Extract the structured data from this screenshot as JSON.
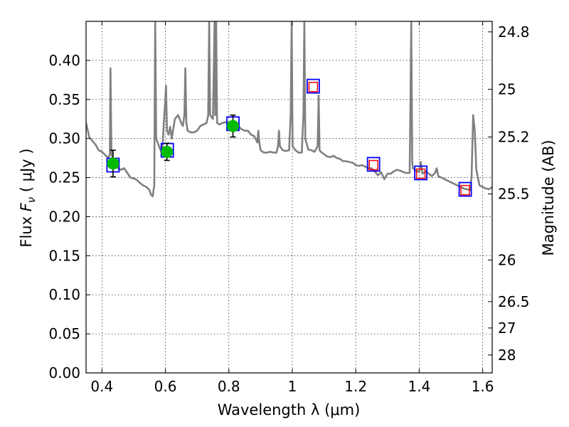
{
  "chart_data": {
    "type": "scatter",
    "title": "",
    "xlabel": "Wavelength  λ (μm)",
    "ylabel_left": "Flux  F_ν  ( μJy )",
    "ylabel_right": "Magnitude (AB)",
    "xlim": [
      0.35,
      1.63
    ],
    "ylim": [
      0.0,
      0.45
    ],
    "grid": true,
    "x_ticks": [
      {
        "value": 0.4,
        "label": "0.4"
      },
      {
        "value": 0.6,
        "label": "0.6"
      },
      {
        "value": 0.8,
        "label": "0.8"
      },
      {
        "value": 1.0,
        "label": "1"
      },
      {
        "value": 1.2,
        "label": "1.2"
      },
      {
        "value": 1.4,
        "label": "1.4"
      },
      {
        "value": 1.6,
        "label": "1.6"
      }
    ],
    "y_ticks": [
      {
        "value": 0.0,
        "label": "0.00"
      },
      {
        "value": 0.05,
        "label": "0.05"
      },
      {
        "value": 0.1,
        "label": "0.10"
      },
      {
        "value": 0.15,
        "label": "0.15"
      },
      {
        "value": 0.2,
        "label": "0.20"
      },
      {
        "value": 0.25,
        "label": "0.25"
      },
      {
        "value": 0.3,
        "label": "0.30"
      },
      {
        "value": 0.35,
        "label": "0.35"
      },
      {
        "value": 0.4,
        "label": "0.40"
      }
    ],
    "right_ticks": [
      {
        "flux": 0.4365,
        "label": "24.8"
      },
      {
        "flux": 0.3631,
        "label": "25"
      },
      {
        "flux": 0.302,
        "label": "25.2"
      },
      {
        "flux": 0.2291,
        "label": "25.5"
      },
      {
        "flux": 0.1445,
        "label": "26"
      },
      {
        "flux": 0.0912,
        "label": "26.5"
      },
      {
        "flux": 0.0575,
        "label": "27"
      },
      {
        "flux": 0.0229,
        "label": "28"
      }
    ],
    "series": [
      {
        "kind": "line",
        "color": "#808080",
        "points": [
          [
            0.35,
            0.32
          ],
          [
            0.36,
            0.302
          ],
          [
            0.37,
            0.297
          ],
          [
            0.38,
            0.292
          ],
          [
            0.39,
            0.285
          ],
          [
            0.4,
            0.283
          ],
          [
            0.41,
            0.279
          ],
          [
            0.42,
            0.275
          ],
          [
            0.425,
            0.28
          ],
          [
            0.427,
            0.39
          ],
          [
            0.43,
            0.28
          ],
          [
            0.44,
            0.268
          ],
          [
            0.45,
            0.262
          ],
          [
            0.46,
            0.26
          ],
          [
            0.47,
            0.262
          ],
          [
            0.48,
            0.256
          ],
          [
            0.49,
            0.25
          ],
          [
            0.5,
            0.249
          ],
          [
            0.51,
            0.247
          ],
          [
            0.52,
            0.243
          ],
          [
            0.53,
            0.24
          ],
          [
            0.54,
            0.238
          ],
          [
            0.55,
            0.234
          ],
          [
            0.555,
            0.228
          ],
          [
            0.56,
            0.226
          ],
          [
            0.565,
            0.24
          ],
          [
            0.568,
            0.45
          ],
          [
            0.571,
            0.3
          ],
          [
            0.58,
            0.29
          ],
          [
            0.59,
            0.28
          ],
          [
            0.595,
            0.32
          ],
          [
            0.6,
            0.35
          ],
          [
            0.602,
            0.368
          ],
          [
            0.605,
            0.31
          ],
          [
            0.61,
            0.305
          ],
          [
            0.615,
            0.315
          ],
          [
            0.62,
            0.3
          ],
          [
            0.63,
            0.325
          ],
          [
            0.64,
            0.33
          ],
          [
            0.645,
            0.325
          ],
          [
            0.65,
            0.32
          ],
          [
            0.655,
            0.316
          ],
          [
            0.66,
            0.33
          ],
          [
            0.663,
            0.39
          ],
          [
            0.666,
            0.32
          ],
          [
            0.67,
            0.31
          ],
          [
            0.68,
            0.308
          ],
          [
            0.69,
            0.308
          ],
          [
            0.7,
            0.31
          ],
          [
            0.71,
            0.316
          ],
          [
            0.72,
            0.318
          ],
          [
            0.73,
            0.32
          ],
          [
            0.735,
            0.33
          ],
          [
            0.738,
            0.45
          ],
          [
            0.741,
            0.33
          ],
          [
            0.75,
            0.325
          ],
          [
            0.755,
            0.45
          ],
          [
            0.757,
            0.33
          ],
          [
            0.76,
            0.45
          ],
          [
            0.763,
            0.32
          ],
          [
            0.77,
            0.318
          ],
          [
            0.78,
            0.32
          ],
          [
            0.79,
            0.321
          ],
          [
            0.8,
            0.32
          ],
          [
            0.81,
            0.318
          ],
          [
            0.82,
            0.316
          ],
          [
            0.83,
            0.316
          ],
          [
            0.84,
            0.312
          ],
          [
            0.85,
            0.31
          ],
          [
            0.86,
            0.31
          ],
          [
            0.87,
            0.305
          ],
          [
            0.88,
            0.303
          ],
          [
            0.89,
            0.295
          ],
          [
            0.893,
            0.31
          ],
          [
            0.896,
            0.295
          ],
          [
            0.9,
            0.285
          ],
          [
            0.91,
            0.282
          ],
          [
            0.92,
            0.282
          ],
          [
            0.93,
            0.283
          ],
          [
            0.94,
            0.282
          ],
          [
            0.95,
            0.282
          ],
          [
            0.955,
            0.29
          ],
          [
            0.958,
            0.31
          ],
          [
            0.961,
            0.29
          ],
          [
            0.97,
            0.285
          ],
          [
            0.98,
            0.284
          ],
          [
            0.99,
            0.285
          ],
          [
            0.995,
            0.33
          ],
          [
            0.998,
            0.45
          ],
          [
            1.001,
            0.29
          ],
          [
            1.01,
            0.285
          ],
          [
            1.02,
            0.282
          ],
          [
            1.03,
            0.282
          ],
          [
            1.035,
            0.33
          ],
          [
            1.038,
            0.45
          ],
          [
            1.041,
            0.3
          ],
          [
            1.05,
            0.286
          ],
          [
            1.06,
            0.285
          ],
          [
            1.07,
            0.283
          ],
          [
            1.08,
            0.29
          ],
          [
            1.083,
            0.355
          ],
          [
            1.086,
            0.285
          ],
          [
            1.09,
            0.283
          ],
          [
            1.1,
            0.28
          ],
          [
            1.11,
            0.277
          ],
          [
            1.12,
            0.276
          ],
          [
            1.13,
            0.278
          ],
          [
            1.14,
            0.275
          ],
          [
            1.15,
            0.274
          ],
          [
            1.16,
            0.271
          ],
          [
            1.17,
            0.271
          ],
          [
            1.18,
            0.27
          ],
          [
            1.19,
            0.269
          ],
          [
            1.2,
            0.266
          ],
          [
            1.21,
            0.265
          ],
          [
            1.22,
            0.266
          ],
          [
            1.23,
            0.264
          ],
          [
            1.24,
            0.262
          ],
          [
            1.25,
            0.262
          ],
          [
            1.26,
            0.258
          ],
          [
            1.27,
            0.253
          ],
          [
            1.28,
            0.257
          ],
          [
            1.29,
            0.248
          ],
          [
            1.3,
            0.255
          ],
          [
            1.31,
            0.255
          ],
          [
            1.32,
            0.258
          ],
          [
            1.33,
            0.26
          ],
          [
            1.34,
            0.259
          ],
          [
            1.35,
            0.257
          ],
          [
            1.36,
            0.256
          ],
          [
            1.37,
            0.256
          ],
          [
            1.372,
            0.33
          ],
          [
            1.375,
            0.45
          ],
          [
            1.378,
            0.27
          ],
          [
            1.38,
            0.262
          ],
          [
            1.39,
            0.259
          ],
          [
            1.4,
            0.257
          ],
          [
            1.405,
            0.27
          ],
          [
            1.41,
            0.255
          ],
          [
            1.42,
            0.258
          ],
          [
            1.43,
            0.255
          ],
          [
            1.44,
            0.252
          ],
          [
            1.45,
            0.256
          ],
          [
            1.455,
            0.262
          ],
          [
            1.46,
            0.252
          ],
          [
            1.47,
            0.25
          ],
          [
            1.48,
            0.248
          ],
          [
            1.49,
            0.246
          ],
          [
            1.5,
            0.244
          ],
          [
            1.51,
            0.242
          ],
          [
            1.52,
            0.24
          ],
          [
            1.53,
            0.238
          ],
          [
            1.54,
            0.236
          ],
          [
            1.55,
            0.235
          ],
          [
            1.56,
            0.234
          ],
          [
            1.565,
            0.25
          ],
          [
            1.57,
            0.33
          ],
          [
            1.575,
            0.31
          ],
          [
            1.58,
            0.26
          ],
          [
            1.59,
            0.24
          ],
          [
            1.6,
            0.238
          ],
          [
            1.61,
            0.236
          ],
          [
            1.62,
            0.235
          ],
          [
            1.63,
            0.238
          ]
        ]
      },
      {
        "kind": "observed",
        "color": "#00bb00",
        "points": [
          {
            "x": 0.435,
            "y": 0.268,
            "err": 0.017
          },
          {
            "x": 0.605,
            "y": 0.283,
            "err": 0.011
          },
          {
            "x": 0.813,
            "y": 0.316,
            "err": 0.014
          }
        ]
      },
      {
        "kind": "model-photometry",
        "color": "#0000ff",
        "points": [
          {
            "x": 0.435,
            "y": 0.266
          },
          {
            "x": 0.606,
            "y": 0.285
          },
          {
            "x": 0.813,
            "y": 0.319
          },
          {
            "x": 1.066,
            "y": 0.367
          },
          {
            "x": 1.256,
            "y": 0.267
          },
          {
            "x": 1.405,
            "y": 0.256
          },
          {
            "x": 1.545,
            "y": 0.235
          }
        ]
      },
      {
        "kind": "upper-limits",
        "color": "#ff0000",
        "points": [
          {
            "x": 1.066,
            "y": 0.366
          },
          {
            "x": 1.256,
            "y": 0.266
          },
          {
            "x": 1.405,
            "y": 0.255
          },
          {
            "x": 1.545,
            "y": 0.234
          }
        ]
      }
    ]
  }
}
